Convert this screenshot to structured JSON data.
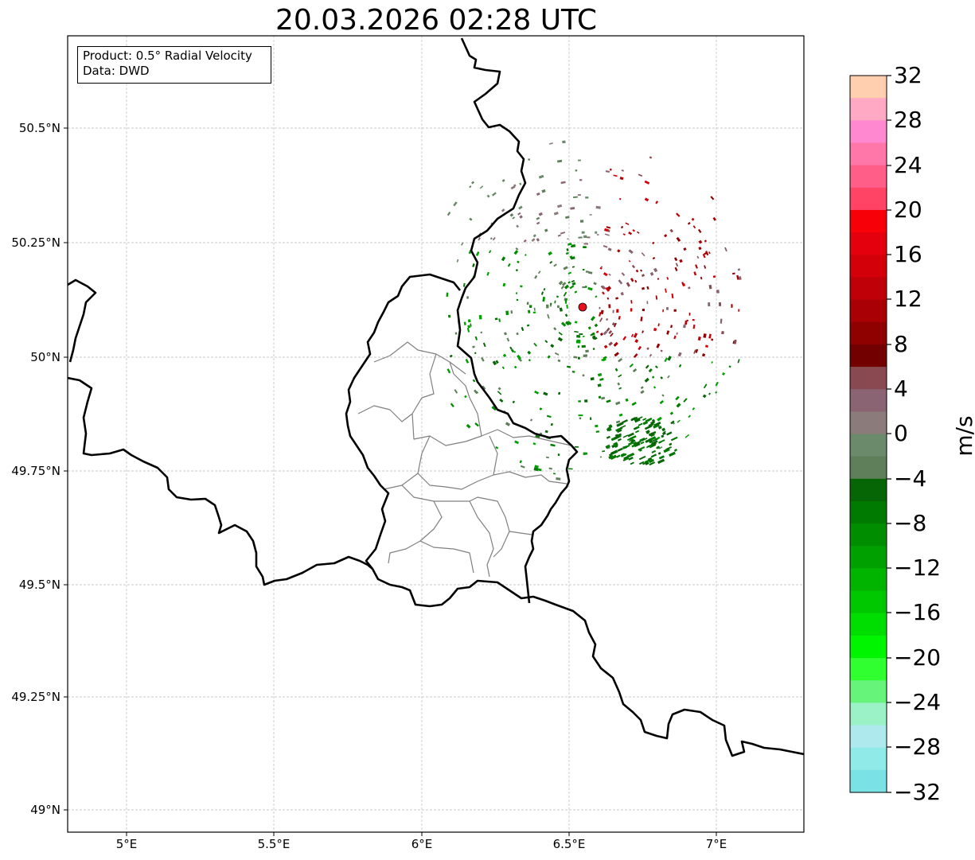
{
  "title": "20.03.2026 02:28 UTC",
  "info_box": {
    "product": "Product: 0.5° Radial Velocity",
    "data": "Data: DWD"
  },
  "axes": {
    "lat_labels": [
      "50.5°N",
      "50.25°N",
      "50°N",
      "49.75°N",
      "49.5°N",
      "49.25°N",
      "49°N"
    ],
    "lon_labels": [
      "5°E",
      "5.5°E",
      "6°E",
      "6.5°E",
      "7°E"
    ],
    "lon_range": [
      4.8,
      7.3
    ],
    "lat_range": [
      48.95,
      50.7
    ],
    "gridlines": true
  },
  "radar_site": {
    "lon": 6.548,
    "lat": 50.11,
    "marker_color": "#e8101a"
  },
  "colorbar": {
    "unit": "m/s",
    "min": -32,
    "max": 32,
    "ticks": [
      "32",
      "28",
      "24",
      "20",
      "16",
      "12",
      "8",
      "4",
      "0",
      "−4",
      "−8",
      "−12",
      "−16",
      "−20",
      "−24",
      "−28",
      "−32"
    ],
    "colors_top_to_bottom": [
      "#ffcfb0",
      "#ffa9c4",
      "#ff88d0",
      "#ff77a8",
      "#ff5e88",
      "#ff4465",
      "#f80007",
      "#e4000c",
      "#d30009",
      "#c00008",
      "#a80004",
      "#8f0000",
      "#720000",
      "#884a50",
      "#8a6472",
      "#8b7b7a",
      "#6b8a6b",
      "#5e7f5a",
      "#066606",
      "#007a00",
      "#008d00",
      "#00a000",
      "#00b400",
      "#00c800",
      "#00dd00",
      "#00f500",
      "#30ff30",
      "#66f47a",
      "#9af2c6",
      "#aee9ed",
      "#8feae8",
      "#7ae2e4"
    ]
  }
}
